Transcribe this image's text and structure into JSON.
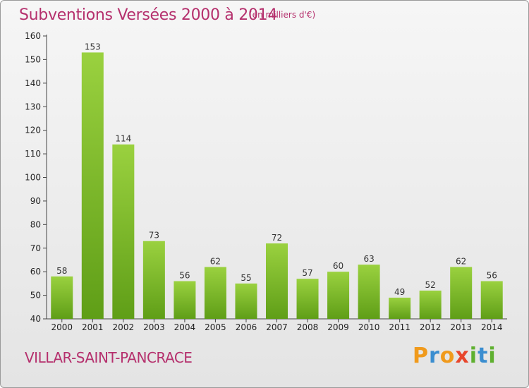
{
  "title": "Subventions Versées 2000 à 2014",
  "subtitle": "(en milliers d'€)",
  "commune": "VILLAR-SAINT-PANCRACE",
  "logo": {
    "text": "Proxiti",
    "colors": [
      "#f09a1c",
      "#3b8ed0",
      "#e8462c",
      "#5fb030"
    ]
  },
  "colors": {
    "title": "#b5306d",
    "bar_top": "#9ad13f",
    "bar_bottom": "#5f9e17"
  },
  "chart_data": {
    "type": "bar",
    "title": "Subventions Versées 2000 à 2014",
    "subtitle": "(en milliers d'€)",
    "categories": [
      "2000",
      "2001",
      "2002",
      "2003",
      "2004",
      "2005",
      "2006",
      "2007",
      "2008",
      "2009",
      "2010",
      "2011",
      "2012",
      "2013",
      "2014"
    ],
    "values": [
      58,
      153,
      114,
      73,
      56,
      62,
      55,
      72,
      57,
      60,
      63,
      49,
      52,
      62,
      56
    ],
    "ylim": [
      40,
      160
    ],
    "yticks": [
      40,
      50,
      60,
      70,
      80,
      90,
      100,
      110,
      120,
      130,
      140,
      150,
      160
    ],
    "grid": false,
    "data_labels": true
  }
}
